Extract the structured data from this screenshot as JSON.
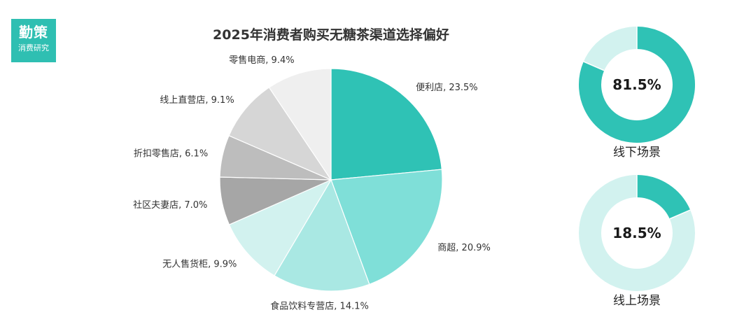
{
  "brand": {
    "logo_main": "勤策",
    "logo_sub": "消费研究"
  },
  "chart_data": [
    {
      "type": "pie",
      "title": "2025年消费者购买无糖茶渠道选择偏好",
      "slices": [
        {
          "label": "便利店",
          "value": 23.5,
          "display": "便利店, 23.5%",
          "color": "#2fc2b5"
        },
        {
          "label": "商超",
          "value": 20.9,
          "display": "商超, 20.9%",
          "color": "#7fdfd8"
        },
        {
          "label": "食品饮料专营店",
          "value": 14.1,
          "display": "食品饮料专营店, 14.1%",
          "color": "#a9e8e3"
        },
        {
          "label": "无人售货柜",
          "value": 9.9,
          "display": "无人售货柜, 9.9%",
          "color": "#d2f2ef"
        },
        {
          "label": "社区夫妻店",
          "value": 7.0,
          "display": "社区夫妻店, 7.0%",
          "color": "#a6a6a6"
        },
        {
          "label": "折扣零售店",
          "value": 6.1,
          "display": "折扣零售店, 6.1%",
          "color": "#bdbdbd"
        },
        {
          "label": "线上直营店",
          "value": 9.1,
          "display": "线上直营店, 9.1%",
          "color": "#d6d6d6"
        },
        {
          "label": "零售电商",
          "value": 9.4,
          "display": "零售电商, 9.4%",
          "color": "#efefef"
        }
      ]
    },
    {
      "type": "pie",
      "variant": "donut",
      "label": "线下场景",
      "value": 81.5,
      "display": "81.5%",
      "color": "#2fc2b5",
      "track_color": "#d2f2ef"
    },
    {
      "type": "pie",
      "variant": "donut",
      "label": "线上场景",
      "value": 18.5,
      "display": "18.5%",
      "color": "#2fc2b5",
      "track_color": "#d2f2ef"
    }
  ]
}
